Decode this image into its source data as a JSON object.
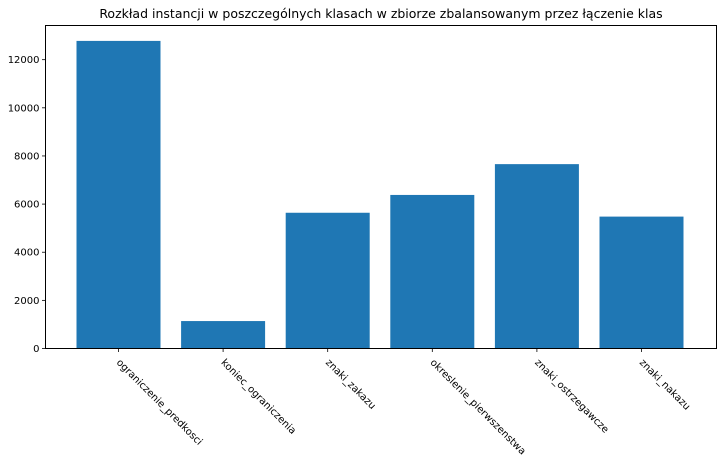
{
  "chart_data": {
    "type": "bar",
    "title": "Rozkład instancji w poszczególnych klasach w zbiorze zbalansowanym przez łączenie klas",
    "xlabel": "",
    "ylabel": "",
    "categories": [
      "ograniczenie_predkosci",
      "koniec_ograniczenia",
      "znaki_zakazu",
      "okreslenie_pierwszenstwa",
      "znaki_ostrzegawcze",
      "znaki_nakazu"
    ],
    "values": [
      12780,
      1140,
      5640,
      6380,
      7660,
      5480
    ],
    "ylim": [
      0,
      13420
    ],
    "yticks": [
      0,
      2000,
      4000,
      6000,
      8000,
      10000,
      12000
    ],
    "bar_color": "#1f77b4",
    "grid": false,
    "legend": "none"
  }
}
